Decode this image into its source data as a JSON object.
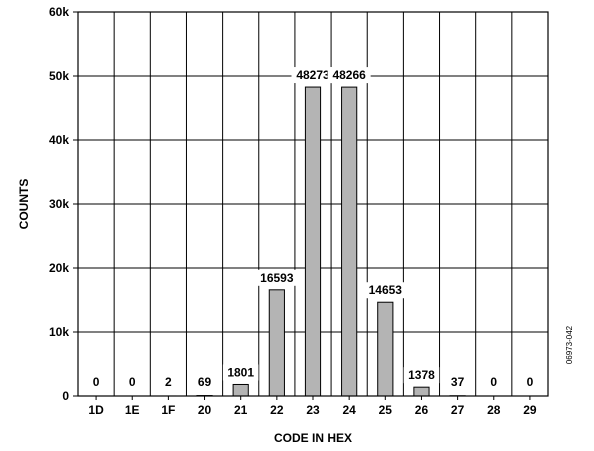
{
  "chart_data": {
    "type": "bar",
    "xlabel": "CODE IN HEX",
    "ylabel": "COUNTS",
    "categories": [
      "1D",
      "1E",
      "1F",
      "20",
      "21",
      "22",
      "23",
      "24",
      "25",
      "26",
      "27",
      "28",
      "29"
    ],
    "values": [
      0,
      0,
      2,
      69,
      1801,
      16593,
      48273,
      48266,
      14653,
      1378,
      37,
      0,
      0
    ],
    "data_labels": [
      "0",
      "0",
      "2",
      "69",
      "1801",
      "16593",
      "48273",
      "48266",
      "14653",
      "1378",
      "37",
      "0",
      "0"
    ],
    "ylim": [
      0,
      60000
    ],
    "y_ticks": [
      0,
      10000,
      20000,
      30000,
      40000,
      50000,
      60000
    ],
    "y_tick_labels": [
      "0",
      "10k",
      "20k",
      "30k",
      "40k",
      "50k",
      "60k"
    ],
    "grid": true,
    "bar_color": "#b4b4b4",
    "figure_id": "06973-042"
  }
}
